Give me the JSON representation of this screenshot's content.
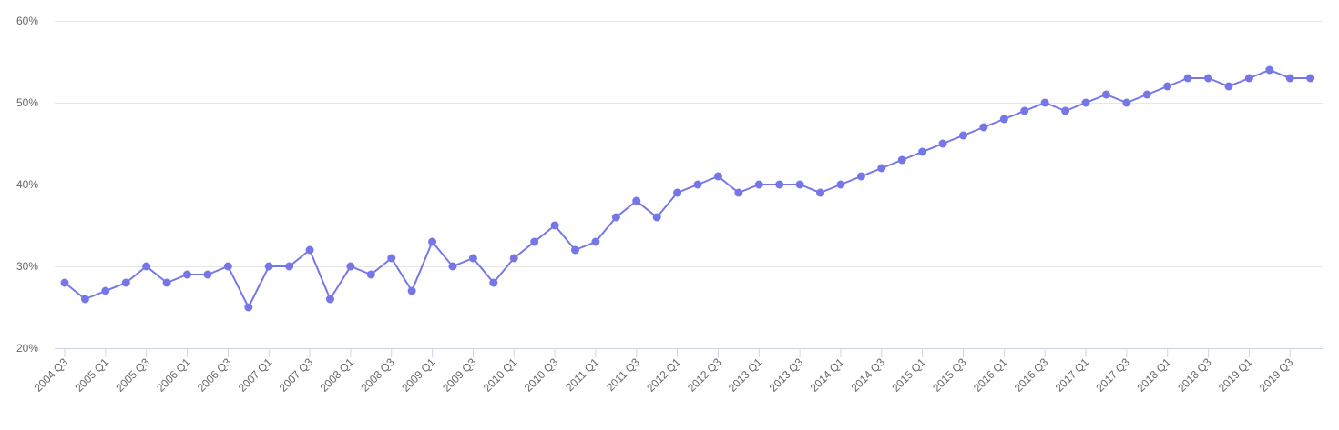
{
  "chart_data": {
    "type": "line",
    "title": "",
    "xlabel": "",
    "ylabel": "",
    "ylim": [
      20,
      60
    ],
    "yticks": [
      20,
      30,
      40,
      50,
      60
    ],
    "ytick_labels": [
      "20%",
      "30%",
      "40%",
      "50%",
      "60%"
    ],
    "grid": true,
    "legend": "none",
    "color": "#7577e8",
    "x": [
      "2004 Q3",
      "2004 Q4",
      "2005 Q1",
      "2005 Q2",
      "2005 Q3",
      "2005 Q4",
      "2006 Q1",
      "2006 Q2",
      "2006 Q3",
      "2006 Q4",
      "2007 Q1",
      "2007 Q2",
      "2007 Q3",
      "2007 Q4",
      "2008 Q1",
      "2008 Q2",
      "2008 Q3",
      "2008 Q4",
      "2009 Q1",
      "2009 Q2",
      "2009 Q3",
      "2009 Q4",
      "2010 Q1",
      "2010 Q2",
      "2010 Q3",
      "2010 Q4",
      "2011 Q1",
      "2011 Q2",
      "2011 Q3",
      "2011 Q4",
      "2012 Q1",
      "2012 Q2",
      "2012 Q3",
      "2012 Q4",
      "2013 Q1",
      "2013 Q2",
      "2013 Q3",
      "2013 Q4",
      "2014 Q1",
      "2014 Q2",
      "2014 Q3",
      "2014 Q4",
      "2015 Q1",
      "2015 Q2",
      "2015 Q3",
      "2015 Q4",
      "2016 Q1",
      "2016 Q2",
      "2016 Q3",
      "2016 Q4",
      "2017 Q1",
      "2017 Q2",
      "2017 Q3",
      "2017 Q4",
      "2018 Q1",
      "2018 Q2",
      "2018 Q3",
      "2018 Q4",
      "2019 Q1",
      "2019 Q2",
      "2019 Q3",
      "2019 Q4"
    ],
    "x_tick_labels": [
      "2004 Q3",
      "2005 Q1",
      "2005 Q3",
      "2006 Q1",
      "2006 Q3",
      "2007 Q1",
      "2007 Q3",
      "2008 Q1",
      "2008 Q3",
      "2009 Q1",
      "2009 Q3",
      "2010 Q1",
      "2010 Q3",
      "2011 Q1",
      "2011 Q3",
      "2012 Q1",
      "2012 Q3",
      "2013 Q1",
      "2013 Q3",
      "2014 Q1",
      "2014 Q3",
      "2015 Q1",
      "2015 Q3",
      "2016 Q1",
      "2016 Q3",
      "2017 Q1",
      "2017 Q3",
      "2018 Q1",
      "2018 Q3",
      "2019 Q1",
      "2019 Q3"
    ],
    "series": [
      {
        "values": [
          28,
          26,
          27,
          28,
          30,
          28,
          29,
          29,
          30,
          25,
          30,
          30,
          32,
          26,
          30,
          29,
          31,
          27,
          33,
          30,
          31,
          28,
          31,
          33,
          35,
          32,
          33,
          36,
          38,
          36,
          39,
          40,
          41,
          39,
          40,
          40,
          40,
          39,
          40,
          41,
          42,
          43,
          44,
          45,
          46,
          47,
          48,
          49,
          50,
          49,
          50,
          51,
          50,
          51,
          52,
          53,
          53,
          52,
          53,
          54,
          53,
          53
        ]
      }
    ]
  }
}
